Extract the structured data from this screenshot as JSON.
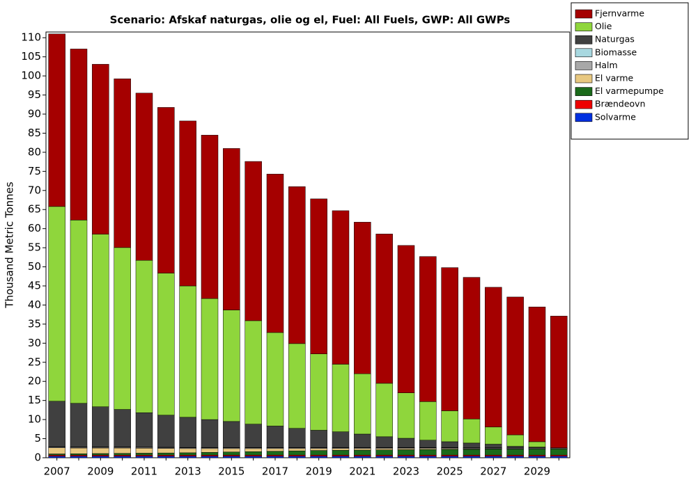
{
  "chart_data": {
    "type": "stacked-bar",
    "subtitle": "Scenario: Afskaf naturgas, olie og el, Fuel: All Fuels, GWP: All GWPs",
    "ylabel": "Thousand Metric Tonnes",
    "categories": [
      "2007",
      null,
      "2009",
      null,
      "2011",
      null,
      "2013",
      null,
      "2015",
      null,
      "2017",
      null,
      "2019",
      null,
      "2021",
      null,
      "2023",
      null,
      "2025",
      null,
      "2027",
      null,
      "2029",
      null
    ],
    "series": [
      {
        "name": "Fjernvarme",
        "color": "#a50000",
        "values": [
          45.2,
          44.8,
          44.5,
          44.2,
          43.8,
          43.4,
          43.2,
          42.8,
          42.3,
          41.7,
          41.5,
          41.1,
          40.6,
          40.2,
          39.7,
          39.1,
          38.6,
          38,
          37.5,
          37.1,
          36.6,
          36.1,
          35.3,
          34.5
        ]
      },
      {
        "name": "Olie",
        "color": "#8fd63c",
        "values": [
          51,
          48,
          45.2,
          42.4,
          39.9,
          37.2,
          34.4,
          31.7,
          29.2,
          27.1,
          24.5,
          22.2,
          20,
          17.7,
          15.8,
          14,
          11.9,
          10.1,
          8.1,
          6.3,
          4.5,
          3,
          1.4,
          0
        ]
      },
      {
        "name": "Naturgas",
        "color": "#404040",
        "values": [
          11.9,
          11.4,
          10.5,
          9.8,
          9,
          8.4,
          7.9,
          7.3,
          6.8,
          6.1,
          5.6,
          5,
          4.5,
          4.1,
          3.5,
          2.8,
          2.4,
          1.9,
          1.5,
          1.2,
          0.9,
          0.4,
          0.2,
          0
        ]
      },
      {
        "name": "Biomasse",
        "color": "#a8d8e0",
        "values": [
          0.1,
          0.1,
          0.1,
          0.1,
          0.1,
          0.1,
          0.1,
          0.1,
          0.1,
          0.1,
          0.1,
          0.1,
          0.1,
          0.1,
          0.1,
          0.1,
          0.1,
          0.1,
          0.1,
          0.1,
          0.1,
          0.1,
          0.1,
          0.1
        ]
      },
      {
        "name": "Halm",
        "color": "#a8a8a8",
        "values": [
          0.2,
          0.2,
          0.2,
          0.2,
          0.2,
          0.2,
          0.2,
          0.2,
          0.2,
          0.2,
          0.2,
          0.2,
          0.2,
          0.2,
          0.2,
          0.2,
          0.2,
          0.2,
          0.2,
          0.2,
          0.2,
          0.2,
          0.2,
          0.2
        ]
      },
      {
        "name": "El varme",
        "color": "#e8c880",
        "values": [
          1.6,
          1.5,
          1.45,
          1.4,
          1.3,
          1.2,
          1.1,
          1,
          0.9,
          0.8,
          0.7,
          0.6,
          0.5,
          0.45,
          0.4,
          0.35,
          0.3,
          0.25,
          0.2,
          0.15,
          0.1,
          0.05,
          0,
          0
        ]
      },
      {
        "name": "El varmepumpe",
        "color": "#1a6a1a",
        "values": [
          0.3,
          0.35,
          0.4,
          0.45,
          0.5,
          0.55,
          0.6,
          0.7,
          0.8,
          0.9,
          1,
          1.1,
          1.2,
          1.25,
          1.3,
          1.35,
          1.4,
          1.45,
          1.5,
          1.5,
          1.55,
          1.55,
          1.6,
          1.6
        ]
      },
      {
        "name": "Brændeovn",
        "color": "#ee0000",
        "values": [
          0.3,
          0.3,
          0.3,
          0.3,
          0.3,
          0.3,
          0.3,
          0.3,
          0.3,
          0.3,
          0.3,
          0.3,
          0.3,
          0.3,
          0.3,
          0.3,
          0.3,
          0.3,
          0.3,
          0.3,
          0.3,
          0.3,
          0.3,
          0.3
        ]
      },
      {
        "name": "Solvarme",
        "color": "#0030e0",
        "values": [
          0.4,
          0.4,
          0.4,
          0.4,
          0.4,
          0.4,
          0.4,
          0.4,
          0.4,
          0.4,
          0.4,
          0.4,
          0.4,
          0.4,
          0.4,
          0.4,
          0.4,
          0.4,
          0.4,
          0.4,
          0.4,
          0.4,
          0.4,
          0.4
        ]
      }
    ],
    "ylim": [
      0,
      111.5
    ],
    "yticks": [
      0,
      5,
      10,
      15,
      20,
      25,
      30,
      35,
      40,
      45,
      50,
      55,
      60,
      65,
      70,
      75,
      80,
      85,
      90,
      95,
      100,
      105,
      110
    ]
  }
}
